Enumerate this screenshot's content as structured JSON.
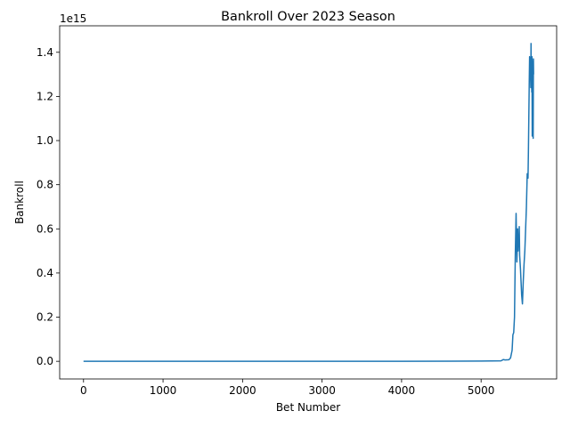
{
  "chart_data": {
    "type": "line",
    "title": "Bankroll Over 2023 Season",
    "xlabel": "Bet Number",
    "ylabel": "Bankroll",
    "y_offset_label": "1e15",
    "xlim": [
      -300,
      5950
    ],
    "ylim": [
      -0.08,
      1.52
    ],
    "x_ticks": [
      0,
      1000,
      2000,
      3000,
      4000,
      5000
    ],
    "x_tick_labels": [
      "0",
      "1000",
      "2000",
      "3000",
      "4000",
      "5000"
    ],
    "y_ticks": [
      0.0,
      0.2,
      0.4,
      0.6,
      0.8,
      1.0,
      1.2,
      1.4
    ],
    "y_tick_labels": [
      "0.0",
      "0.2",
      "0.4",
      "0.6",
      "0.8",
      "1.0",
      "1.2",
      "1.4"
    ],
    "grid": false,
    "legend": "none",
    "line_color": "#1f77b4",
    "series": [
      {
        "x": [
          0,
          1000,
          2000,
          3000,
          4000,
          5000,
          5250,
          5280,
          5300,
          5350,
          5370,
          5390,
          5400,
          5410,
          5420,
          5430,
          5440,
          5445,
          5450,
          5455,
          5460,
          5465,
          5470,
          5475,
          5480,
          5485,
          5490,
          5495,
          5500,
          5510,
          5520,
          5530,
          5540,
          5550,
          5560,
          5570,
          5580,
          5590,
          5595,
          5600,
          5605,
          5610,
          5615,
          5620,
          5625,
          5628,
          5631,
          5634,
          5637,
          5640,
          5643,
          5646,
          5649,
          5652,
          5655,
          5658,
          5660
        ],
        "y": [
          0.0,
          0.0,
          0.0,
          0.0,
          0.0,
          0.001,
          0.002,
          0.008,
          0.006,
          0.007,
          0.015,
          0.05,
          0.12,
          0.13,
          0.2,
          0.48,
          0.67,
          0.55,
          0.45,
          0.52,
          0.6,
          0.5,
          0.56,
          0.52,
          0.61,
          0.48,
          0.45,
          0.42,
          0.38,
          0.3,
          0.26,
          0.36,
          0.44,
          0.5,
          0.6,
          0.7,
          0.85,
          0.83,
          0.95,
          1.1,
          1.25,
          1.38,
          1.3,
          1.32,
          1.24,
          1.44,
          1.3,
          1.35,
          1.22,
          1.38,
          1.02,
          1.36,
          1.26,
          1.35,
          1.01,
          1.37,
          1.3
        ]
      }
    ]
  }
}
